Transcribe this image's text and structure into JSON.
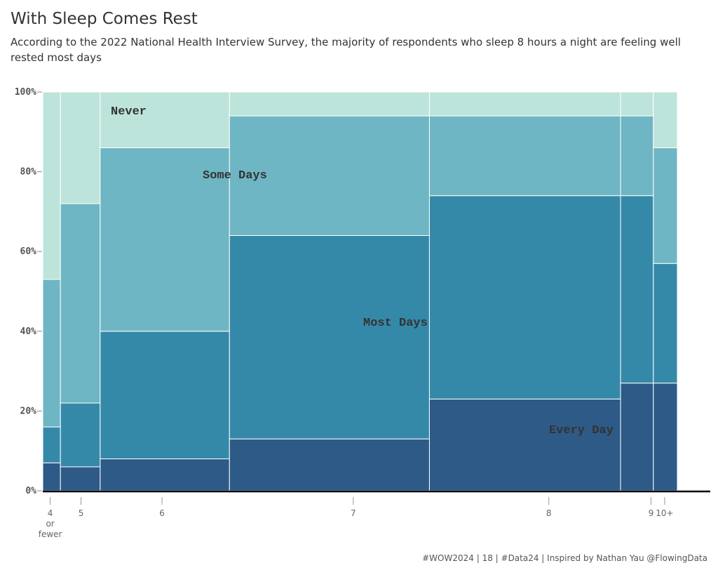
{
  "title": "With Sleep Comes Rest",
  "subtitle": "According to the 2022 National Health Interview Survey, the majority of respondents who sleep 8 hours a night are feeling well rested most days",
  "footer": "#WOW2024 | 18 | #Data24 | Inspired by Nathan Yau @FlowingData",
  "colors": {
    "Every Day": "#2e5a87",
    "Most Days": "#3589a8",
    "Some Days": "#6eb6c4",
    "Never": "#bde4da"
  },
  "chart_data": {
    "type": "mosaic",
    "title": "With Sleep Comes Rest",
    "xlabel": "",
    "ylabel": "",
    "ylim": [
      0,
      100
    ],
    "y_ticks": [
      "0%",
      "20%",
      "40%",
      "60%",
      "80%",
      "100%"
    ],
    "categories": [
      "4\nor\nfewer",
      "5",
      "6",
      "7",
      "8",
      "9",
      "10+"
    ],
    "column_widths_pct": [
      2.8,
      6.3,
      20.5,
      31.7,
      30.3,
      5.2,
      3.8
    ],
    "series": [
      {
        "name": "Every Day",
        "values": [
          7,
          6,
          8,
          13,
          23,
          27,
          27
        ]
      },
      {
        "name": "Most Days",
        "values": [
          9,
          16,
          32,
          51,
          51,
          47,
          30
        ]
      },
      {
        "name": "Some Days",
        "values": [
          37,
          50,
          46,
          30,
          20,
          20,
          29
        ]
      },
      {
        "name": "Never",
        "values": [
          47,
          28,
          14,
          6,
          6,
          6,
          14
        ]
      }
    ],
    "series_labels": [
      "Never",
      "Some Days",
      "Most Days",
      "Every Day"
    ],
    "grid": false,
    "legend": "inline"
  }
}
